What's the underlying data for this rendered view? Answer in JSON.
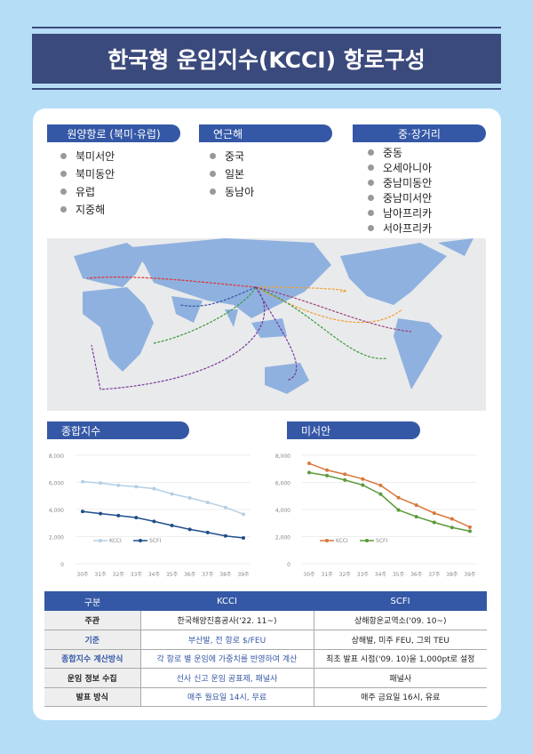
{
  "title": "한국형 운임지수(KCCI) 항로구성",
  "routes": {
    "groups": [
      {
        "label": "원양항로 (북미·유럽)",
        "items": [
          "북미서안",
          "북미동안",
          "유럽",
          "지중해"
        ]
      },
      {
        "label": "연근해",
        "items": [
          "중국",
          "일본",
          "동남아"
        ]
      },
      {
        "label": "중·장거리",
        "items": [
          "중동",
          "오세아니아",
          "중남미동안",
          "중남미서안",
          "남아프리카",
          "서아프리카"
        ]
      }
    ]
  },
  "colors": {
    "navy": "#3b4a7c",
    "accent": "#3558a6",
    "kcci1": "#b4cfe4",
    "scfi1": "#1f4e8c",
    "kcci2": "#d9773a",
    "scfi2": "#5a9a3a"
  },
  "chart_data": [
    {
      "type": "line",
      "title": "종합지수",
      "categories": [
        "30주",
        "31주",
        "32주",
        "33주",
        "34주",
        "35주",
        "36주",
        "37주",
        "38주",
        "39주"
      ],
      "ylim": [
        0,
        8000
      ],
      "yticks": [
        "0",
        "2,000",
        "4,000",
        "6,000",
        "8,000"
      ],
      "legend": "bottom-left",
      "grid": true,
      "series": [
        {
          "name": "KCCI",
          "values": [
            6050,
            5950,
            5780,
            5680,
            5530,
            5150,
            4850,
            4520,
            4150,
            3650
          ]
        },
        {
          "name": "SCFI",
          "values": [
            3850,
            3700,
            3550,
            3400,
            3120,
            2820,
            2530,
            2300,
            2050,
            1900
          ]
        }
      ]
    },
    {
      "type": "line",
      "title": "미서안",
      "categories": [
        "30주",
        "31주",
        "32주",
        "33주",
        "34주",
        "35주",
        "36주",
        "37주",
        "38주",
        "39주"
      ],
      "ylim": [
        0,
        8000
      ],
      "yticks": [
        "0",
        "2,000",
        "4,000",
        "6,000",
        "8,000"
      ],
      "legend": "bottom-left",
      "grid": true,
      "series": [
        {
          "name": "KCCI",
          "values": [
            7400,
            6900,
            6600,
            6250,
            5780,
            4870,
            4320,
            3730,
            3300,
            2700
          ]
        },
        {
          "name": "SCFI",
          "values": [
            6720,
            6500,
            6170,
            5800,
            5130,
            3960,
            3470,
            3050,
            2670,
            2400
          ]
        }
      ]
    }
  ],
  "table": {
    "headers": [
      "구분",
      "KCCI",
      "SCFI"
    ],
    "rows": [
      [
        "주관",
        "한국해양진흥공사('22. 11~)",
        "상해항운교역소('09. 10~)"
      ],
      [
        "기준",
        "부산발, 전 항로 $/FEU",
        "상해발, 미주 FEU, 그외 TEU"
      ],
      [
        "종합지수 계산방식",
        "각 항로 별 운임에 가중치를 반영하여 계산",
        "최초 발표 시점('09. 10)을 1,000pt로 설정"
      ],
      [
        "운임 정보 수집",
        "선사 신고 운임 공표제, 패널사",
        "패널사"
      ],
      [
        "발표 방식",
        "매주 월요일 14시, 무료",
        "매주 금요일 16시, 유료"
      ]
    ]
  }
}
